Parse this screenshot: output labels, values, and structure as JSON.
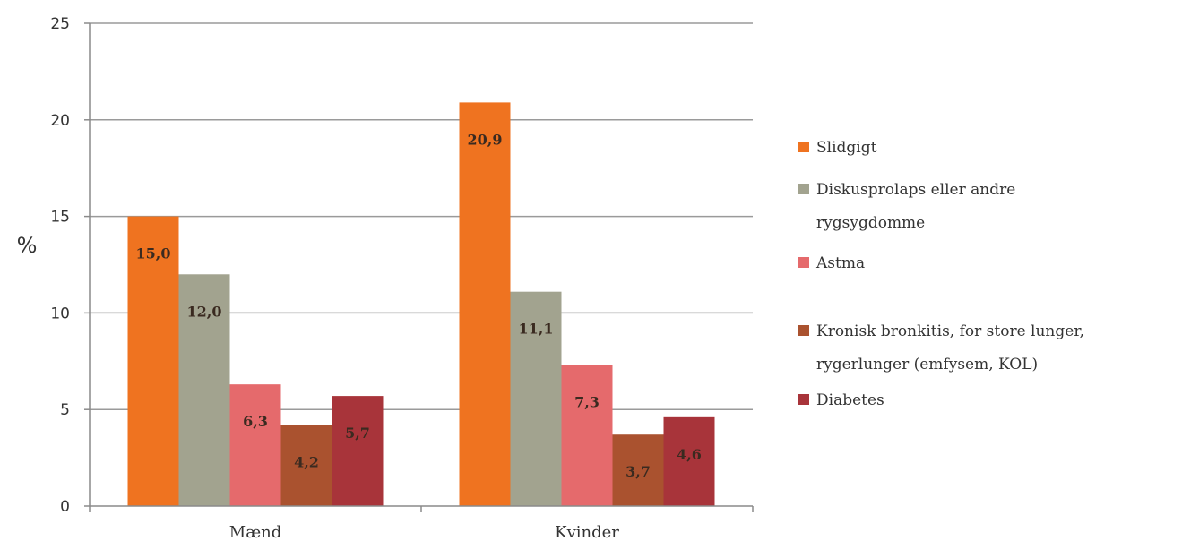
{
  "chart_data": {
    "type": "bar",
    "title": "",
    "xlabel": "",
    "ylabel": "%",
    "ylim": [
      0,
      25
    ],
    "yticks": [
      0,
      5,
      10,
      15,
      20,
      25
    ],
    "grid": true,
    "legend_position": "right",
    "categories": [
      "Mænd",
      "Kvinder"
    ],
    "series": [
      {
        "name": "Slidgigt",
        "color": "#ef7320",
        "values": [
          15.0,
          20.9
        ],
        "labels": [
          "15,0",
          "20,9"
        ]
      },
      {
        "name": "Diskusprolaps eller andre rygsygdomme",
        "legend_lines": [
          "Diskusprolaps eller andre",
          "rygsygdomme"
        ],
        "color": "#a2a38f",
        "values": [
          12.0,
          11.1
        ],
        "labels": [
          "12,0",
          "11,1"
        ]
      },
      {
        "name": "Astma",
        "color": "#e56a6c",
        "values": [
          6.3,
          7.3
        ],
        "labels": [
          "6,3",
          "7,3"
        ]
      },
      {
        "name": "Kronisk bronkitis, for store lunger, rygerlunger (emfysem, KOL)",
        "legend_lines": [
          "Kronisk bronkitis, for store lunger,",
          "rygerlunger (emfysem, KOL)"
        ],
        "color": "#aa522f",
        "values": [
          4.2,
          3.7
        ],
        "labels": [
          "4,2",
          "3,7"
        ]
      },
      {
        "name": "Diabetes",
        "color": "#a8343a",
        "values": [
          5.7,
          4.6
        ],
        "labels": [
          "5,7",
          "4,6"
        ]
      }
    ]
  }
}
